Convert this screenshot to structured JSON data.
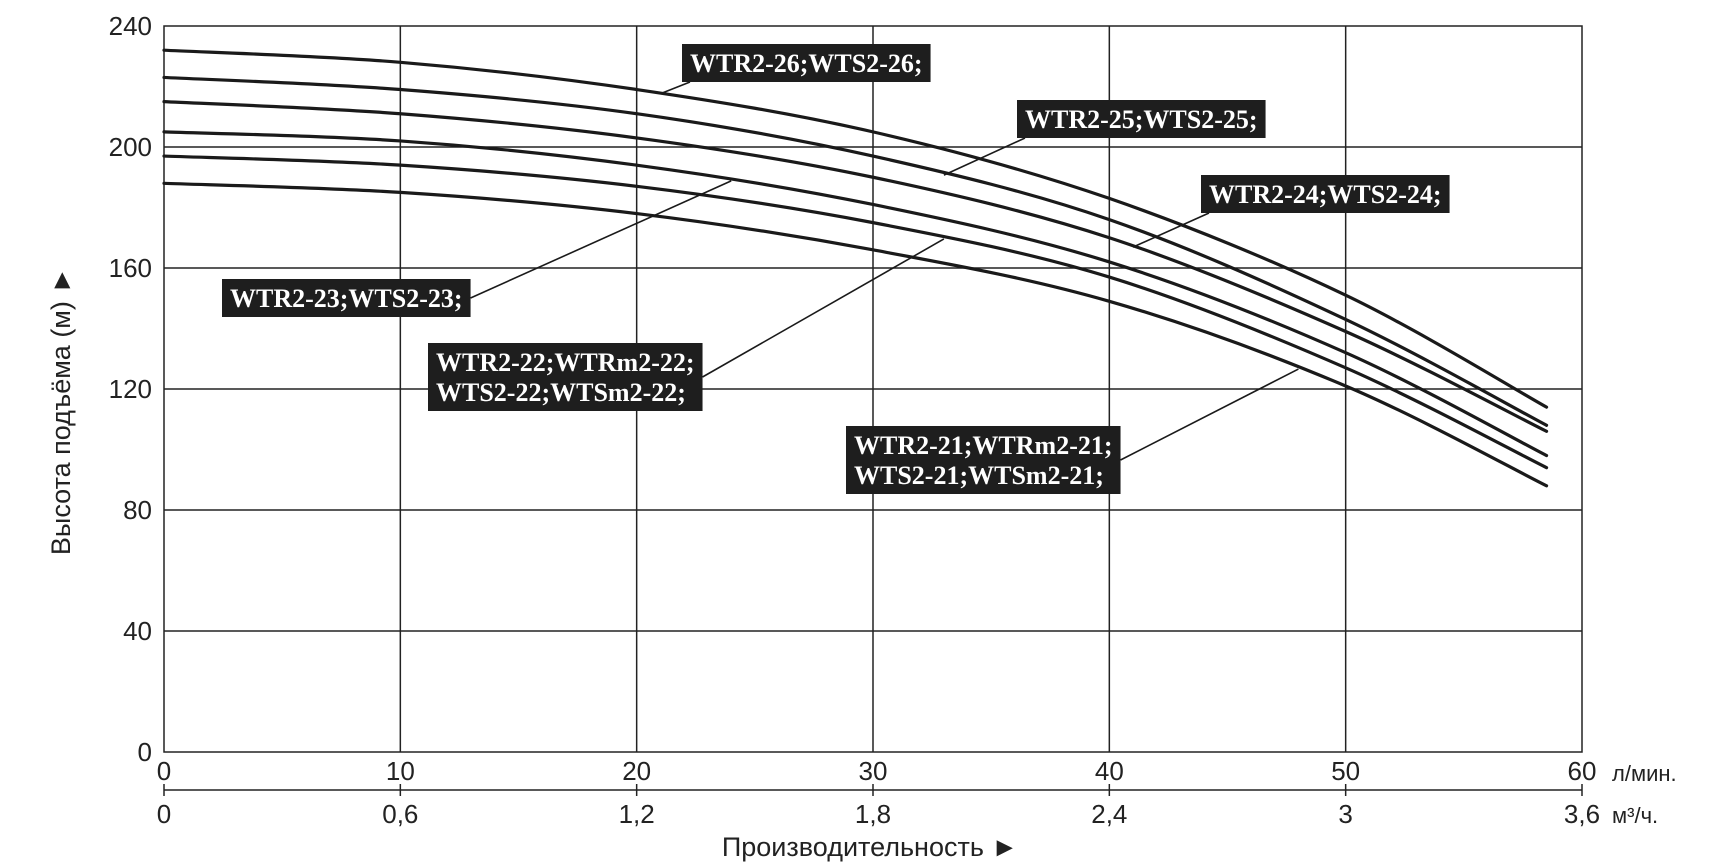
{
  "chart_data": {
    "type": "line",
    "xlabel": "Производительность ►",
    "ylabel": "Высота подъёма (м) ►",
    "xlim": [
      0,
      60
    ],
    "ylim": [
      0,
      240
    ],
    "x_unit": "л/мин.",
    "x2_unit": "м³/ч.",
    "x_ticks": [
      "0",
      "10",
      "20",
      "30",
      "40",
      "50",
      "60"
    ],
    "x2_ticks": [
      "0",
      "0,6",
      "1,2",
      "1,8",
      "2,4",
      "3",
      "3,6"
    ],
    "y_ticks": [
      "0",
      "40",
      "80",
      "120",
      "160",
      "200",
      "240"
    ],
    "grid": true,
    "x": [
      0,
      10,
      20,
      30,
      40,
      50,
      58.5
    ],
    "series": [
      {
        "name": "WTR2-26;WTS2-26;",
        "values": [
          232,
          228,
          219,
          205,
          183,
          151,
          114
        ]
      },
      {
        "name": "WTR2-25;WTS2-25;",
        "values": [
          223,
          219,
          211,
          197,
          176,
          143,
          108
        ]
      },
      {
        "name": "WTR2-24;WTS2-24;",
        "values": [
          215,
          211,
          203,
          190,
          170,
          139,
          106
        ]
      },
      {
        "name": "WTR2-23;WTS2-23;",
        "values": [
          205,
          202,
          194,
          181,
          162,
          132,
          98
        ]
      },
      {
        "name": "WTR2-22;WTRm2-22; WTS2-22;WTSm2-22;",
        "values": [
          197,
          194,
          187,
          175,
          157,
          127,
          94
        ]
      },
      {
        "name": "WTR2-21;WTRm2-21; WTS2-21;WTSm2-21;",
        "values": [
          188,
          185,
          178,
          166,
          149,
          121,
          88
        ]
      }
    ],
    "labels": [
      {
        "lines": [
          "WTR2-26;WTS2-26;"
        ],
        "series": 0,
        "at_x": 21
      },
      {
        "lines": [
          "WTR2-25;WTS2-25;"
        ],
        "series": 1,
        "at_x": 33
      },
      {
        "lines": [
          "WTR2-24;WTS2-24;"
        ],
        "series": 2,
        "at_x": 41
      },
      {
        "lines": [
          "WTR2-23;WTS2-23;"
        ],
        "series": 3,
        "at_x": 24
      },
      {
        "lines": [
          "WTR2-22;WTRm2-22;",
          "WTS2-22;WTSm2-22;"
        ],
        "series": 4,
        "at_x": 33
      },
      {
        "lines": [
          "WTR2-21;WTRm2-21;",
          "WTS2-21;WTSm2-21;"
        ],
        "series": 5,
        "at_x": 48
      }
    ]
  }
}
